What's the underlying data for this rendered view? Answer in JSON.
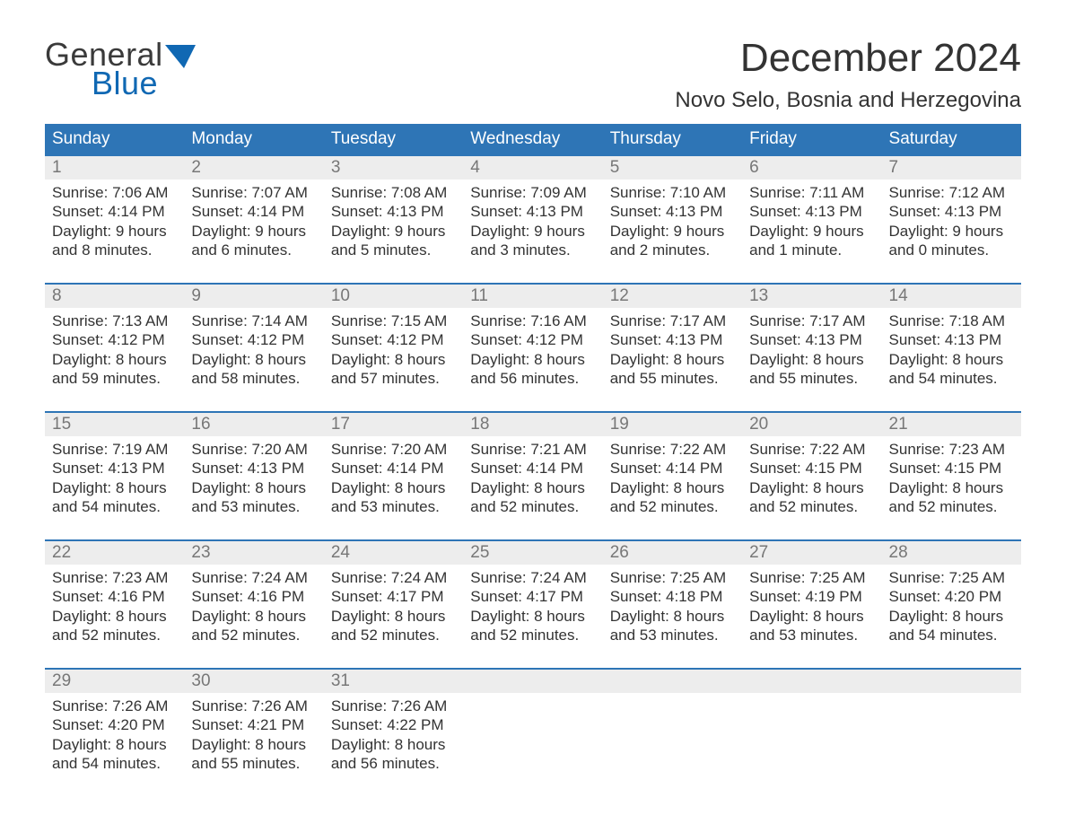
{
  "logo": {
    "general": "General",
    "blue": "Blue",
    "tri_color": "#1068b3"
  },
  "title": "December 2024",
  "location": "Novo Selo, Bosnia and Herzegovina",
  "colors": {
    "header_bg": "#2e75b6",
    "header_text": "#ffffff",
    "week_border": "#2e75b6",
    "daynum_bg": "#ededed",
    "daynum_color": "#777777",
    "body_text": "#333333",
    "background": "#ffffff"
  },
  "typography": {
    "title_fontsize": 44,
    "location_fontsize": 24,
    "weekday_fontsize": 19,
    "daynum_fontsize": 19,
    "body_fontsize": 17,
    "font_family": "Arial"
  },
  "layout": {
    "columns": 7,
    "rows": 5,
    "day_min_height": 110
  },
  "weekdays": [
    "Sunday",
    "Monday",
    "Tuesday",
    "Wednesday",
    "Thursday",
    "Friday",
    "Saturday"
  ],
  "labels": {
    "sunrise": "Sunrise:",
    "sunset": "Sunset:",
    "daylight": "Daylight:"
  },
  "weeks": [
    [
      {
        "n": "1",
        "sunrise": "7:06 AM",
        "sunset": "4:14 PM",
        "dl1": "9 hours",
        "dl2": "and 8 minutes."
      },
      {
        "n": "2",
        "sunrise": "7:07 AM",
        "sunset": "4:14 PM",
        "dl1": "9 hours",
        "dl2": "and 6 minutes."
      },
      {
        "n": "3",
        "sunrise": "7:08 AM",
        "sunset": "4:13 PM",
        "dl1": "9 hours",
        "dl2": "and 5 minutes."
      },
      {
        "n": "4",
        "sunrise": "7:09 AM",
        "sunset": "4:13 PM",
        "dl1": "9 hours",
        "dl2": "and 3 minutes."
      },
      {
        "n": "5",
        "sunrise": "7:10 AM",
        "sunset": "4:13 PM",
        "dl1": "9 hours",
        "dl2": "and 2 minutes."
      },
      {
        "n": "6",
        "sunrise": "7:11 AM",
        "sunset": "4:13 PM",
        "dl1": "9 hours",
        "dl2": "and 1 minute."
      },
      {
        "n": "7",
        "sunrise": "7:12 AM",
        "sunset": "4:13 PM",
        "dl1": "9 hours",
        "dl2": "and 0 minutes."
      }
    ],
    [
      {
        "n": "8",
        "sunrise": "7:13 AM",
        "sunset": "4:12 PM",
        "dl1": "8 hours",
        "dl2": "and 59 minutes."
      },
      {
        "n": "9",
        "sunrise": "7:14 AM",
        "sunset": "4:12 PM",
        "dl1": "8 hours",
        "dl2": "and 58 minutes."
      },
      {
        "n": "10",
        "sunrise": "7:15 AM",
        "sunset": "4:12 PM",
        "dl1": "8 hours",
        "dl2": "and 57 minutes."
      },
      {
        "n": "11",
        "sunrise": "7:16 AM",
        "sunset": "4:12 PM",
        "dl1": "8 hours",
        "dl2": "and 56 minutes."
      },
      {
        "n": "12",
        "sunrise": "7:17 AM",
        "sunset": "4:13 PM",
        "dl1": "8 hours",
        "dl2": "and 55 minutes."
      },
      {
        "n": "13",
        "sunrise": "7:17 AM",
        "sunset": "4:13 PM",
        "dl1": "8 hours",
        "dl2": "and 55 minutes."
      },
      {
        "n": "14",
        "sunrise": "7:18 AM",
        "sunset": "4:13 PM",
        "dl1": "8 hours",
        "dl2": "and 54 minutes."
      }
    ],
    [
      {
        "n": "15",
        "sunrise": "7:19 AM",
        "sunset": "4:13 PM",
        "dl1": "8 hours",
        "dl2": "and 54 minutes."
      },
      {
        "n": "16",
        "sunrise": "7:20 AM",
        "sunset": "4:13 PM",
        "dl1": "8 hours",
        "dl2": "and 53 minutes."
      },
      {
        "n": "17",
        "sunrise": "7:20 AM",
        "sunset": "4:14 PM",
        "dl1": "8 hours",
        "dl2": "and 53 minutes."
      },
      {
        "n": "18",
        "sunrise": "7:21 AM",
        "sunset": "4:14 PM",
        "dl1": "8 hours",
        "dl2": "and 52 minutes."
      },
      {
        "n": "19",
        "sunrise": "7:22 AM",
        "sunset": "4:14 PM",
        "dl1": "8 hours",
        "dl2": "and 52 minutes."
      },
      {
        "n": "20",
        "sunrise": "7:22 AM",
        "sunset": "4:15 PM",
        "dl1": "8 hours",
        "dl2": "and 52 minutes."
      },
      {
        "n": "21",
        "sunrise": "7:23 AM",
        "sunset": "4:15 PM",
        "dl1": "8 hours",
        "dl2": "and 52 minutes."
      }
    ],
    [
      {
        "n": "22",
        "sunrise": "7:23 AM",
        "sunset": "4:16 PM",
        "dl1": "8 hours",
        "dl2": "and 52 minutes."
      },
      {
        "n": "23",
        "sunrise": "7:24 AM",
        "sunset": "4:16 PM",
        "dl1": "8 hours",
        "dl2": "and 52 minutes."
      },
      {
        "n": "24",
        "sunrise": "7:24 AM",
        "sunset": "4:17 PM",
        "dl1": "8 hours",
        "dl2": "and 52 minutes."
      },
      {
        "n": "25",
        "sunrise": "7:24 AM",
        "sunset": "4:17 PM",
        "dl1": "8 hours",
        "dl2": "and 52 minutes."
      },
      {
        "n": "26",
        "sunrise": "7:25 AM",
        "sunset": "4:18 PM",
        "dl1": "8 hours",
        "dl2": "and 53 minutes."
      },
      {
        "n": "27",
        "sunrise": "7:25 AM",
        "sunset": "4:19 PM",
        "dl1": "8 hours",
        "dl2": "and 53 minutes."
      },
      {
        "n": "28",
        "sunrise": "7:25 AM",
        "sunset": "4:20 PM",
        "dl1": "8 hours",
        "dl2": "and 54 minutes."
      }
    ],
    [
      {
        "n": "29",
        "sunrise": "7:26 AM",
        "sunset": "4:20 PM",
        "dl1": "8 hours",
        "dl2": "and 54 minutes."
      },
      {
        "n": "30",
        "sunrise": "7:26 AM",
        "sunset": "4:21 PM",
        "dl1": "8 hours",
        "dl2": "and 55 minutes."
      },
      {
        "n": "31",
        "sunrise": "7:26 AM",
        "sunset": "4:22 PM",
        "dl1": "8 hours",
        "dl2": "and 56 minutes."
      },
      {
        "empty": true
      },
      {
        "empty": true
      },
      {
        "empty": true
      },
      {
        "empty": true
      }
    ]
  ]
}
